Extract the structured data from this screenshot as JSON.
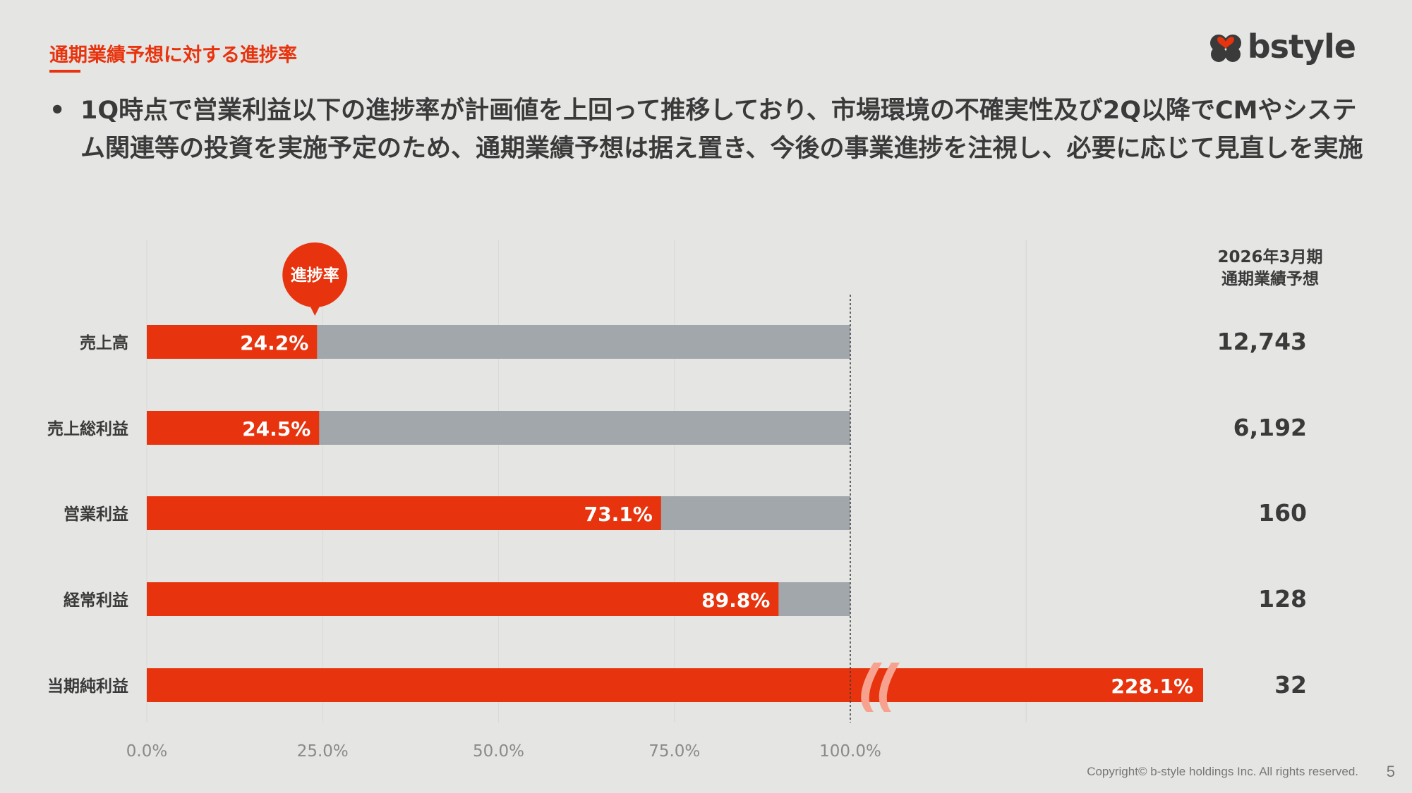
{
  "header": {
    "section_title": "通期業績予想に対する進捗率",
    "logo_text": "bstyle"
  },
  "bullet": {
    "text": "1Q時点で営業利益以下の進捗率が計画値を上回って推移しており、市場環境の不確実性及び2Q以降でCMやシステム関連等の投資を実施予定のため、通期業績予想は据え置き、今後の事業進捗を注視し、必要に応じて見直しを実施"
  },
  "forecast_header": {
    "line1": "2026年3月期",
    "line2": "通期業績予想"
  },
  "chart_data": {
    "type": "bar",
    "orientation": "horizontal",
    "categories": [
      "売上高",
      "売上総利益",
      "営業利益",
      "経常利益",
      "当期純利益"
    ],
    "values": [
      24.2,
      24.5,
      73.1,
      89.8,
      228.1
    ],
    "value_labels": [
      "24.2%",
      "24.5%",
      "73.1%",
      "89.8%",
      "228.1%"
    ],
    "forecast_values": [
      "12,743",
      "6,192",
      "160",
      "128",
      "32"
    ],
    "x_ticks": [
      "0.0%",
      "25.0%",
      "50.0%",
      "75.0%",
      "100.0%"
    ],
    "xlim": [
      0,
      100
    ],
    "axis_break": true,
    "annotation": "進捗率",
    "colors": {
      "progress": "#e8340e",
      "remaining": "#a2a7ab",
      "break_mark": "#f7a28f",
      "text": "#3a3a3a",
      "tick": "#8a8a8a"
    }
  },
  "footer": {
    "copyright": "Copyright© b-style holdings Inc. All rights reserved.",
    "page_number": "5"
  }
}
